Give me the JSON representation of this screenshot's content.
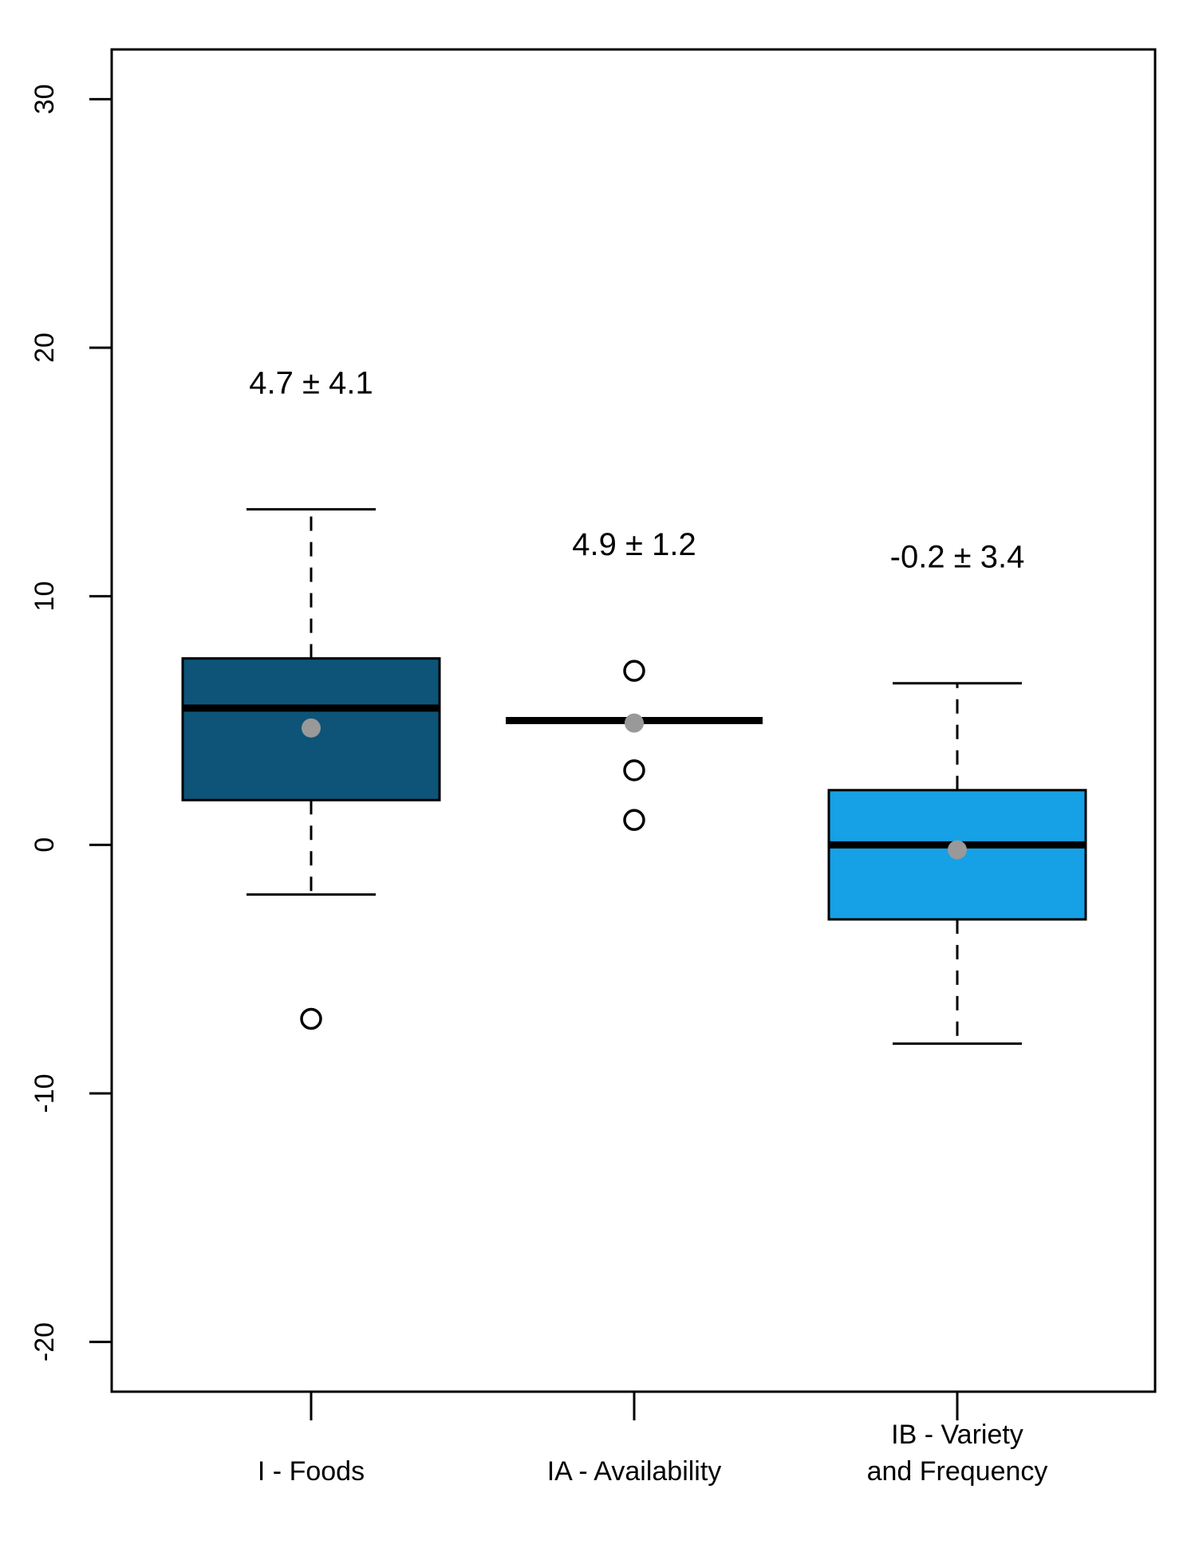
{
  "chart_data": {
    "type": "box",
    "title": "",
    "xlabel": "",
    "ylabel": "",
    "ylim": [
      -22,
      32
    ],
    "yticks": [
      -20,
      -10,
      0,
      10,
      20,
      30
    ],
    "ytick_labels": [
      "-20",
      "-10",
      "0",
      "10",
      "20",
      "30"
    ],
    "categories": [
      {
        "label_lines": [
          "I - Foods"
        ]
      },
      {
        "label_lines": [
          "IA - Availability"
        ]
      },
      {
        "label_lines": [
          "IB - Variety",
          "and Frequency"
        ]
      }
    ],
    "boxes": [
      {
        "whisker_low": -2,
        "q1": 1.8,
        "median": 5.5,
        "q3": 7.5,
        "whisker_high": 13.5,
        "mean": 4.7,
        "outliers": [
          -7
        ],
        "color": "#0d5478",
        "annotation": "4.7 ± 4.1",
        "annotation_y": 18.5
      },
      {
        "whisker_low": 5,
        "q1": 5,
        "median": 5,
        "q3": 5,
        "whisker_high": 5,
        "mean": 4.9,
        "outliers": [
          1,
          3,
          7
        ],
        "color": "#0d5478",
        "annotation": "4.9 ± 1.2",
        "annotation_y": 12.0
      },
      {
        "whisker_low": -8,
        "q1": -3,
        "median": 0,
        "q3": 2.2,
        "whisker_high": 6.5,
        "mean": -0.2,
        "outliers": [],
        "color": "#16a0e6",
        "annotation": "-0.2 ± 3.4",
        "annotation_y": 11.5
      }
    ],
    "mean_marker_color": "#999999"
  }
}
